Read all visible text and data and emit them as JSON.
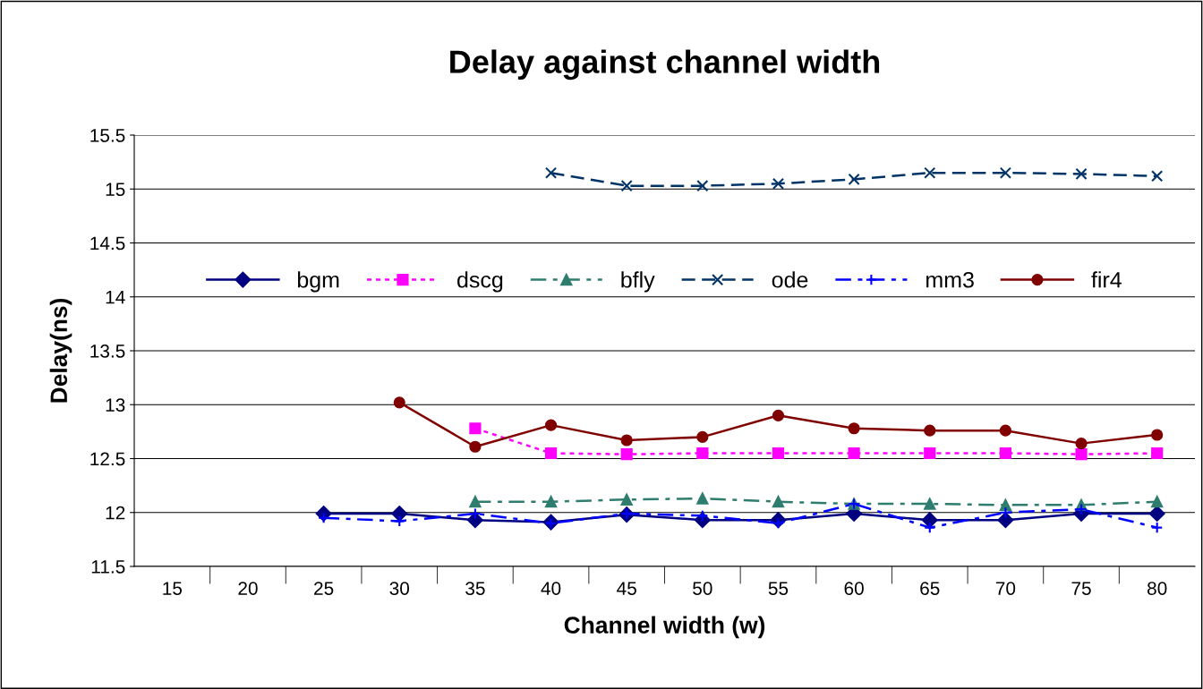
{
  "chart_data": {
    "type": "line",
    "title": "Delay against channel width",
    "xlabel": "Channel width (w)",
    "ylabel": "Delay(ns)",
    "categories": [
      "15",
      "20",
      "25",
      "30",
      "35",
      "40",
      "45",
      "50",
      "55",
      "60",
      "65",
      "70",
      "75",
      "80"
    ],
    "ylim": [
      11.5,
      15.5
    ],
    "yticks": [
      11.5,
      12,
      12.5,
      13,
      13.5,
      14,
      14.5,
      15,
      15.5
    ],
    "grid": "y",
    "legend": "center",
    "series": [
      {
        "name": "bgm",
        "color": "#000080",
        "marker": "diamond",
        "line_style": "solid",
        "values": [
          null,
          null,
          11.99,
          11.99,
          11.93,
          11.91,
          11.98,
          11.93,
          11.93,
          11.99,
          11.93,
          11.93,
          11.99,
          11.99
        ]
      },
      {
        "name": "dscg",
        "color": "#ff00ff",
        "marker": "square",
        "line_style": "dotted",
        "values": [
          null,
          null,
          null,
          null,
          12.78,
          12.55,
          12.54,
          12.55,
          12.55,
          12.55,
          12.55,
          12.55,
          12.54,
          12.55
        ]
      },
      {
        "name": "bfly",
        "color": "#2e7d6e",
        "marker": "triangle",
        "line_style": "dashdot",
        "values": [
          null,
          null,
          null,
          null,
          12.1,
          12.1,
          12.12,
          12.13,
          12.1,
          12.08,
          12.08,
          12.07,
          12.07,
          12.1
        ]
      },
      {
        "name": "ode",
        "color": "#003366",
        "marker": "cross",
        "line_style": "dashed",
        "values": [
          null,
          null,
          null,
          null,
          null,
          15.15,
          15.03,
          15.03,
          15.05,
          15.09,
          15.15,
          15.15,
          15.14,
          15.12
        ]
      },
      {
        "name": "mm3",
        "color": "#0000ff",
        "marker": "plus",
        "line_style": "dashdot",
        "values": [
          null,
          null,
          11.95,
          11.92,
          11.99,
          11.9,
          11.99,
          11.97,
          11.9,
          12.08,
          11.86,
          12.0,
          12.03,
          11.86
        ]
      },
      {
        "name": "fir4",
        "color": "#800000",
        "marker": "circle",
        "line_style": "solid",
        "values": [
          null,
          null,
          null,
          13.02,
          12.61,
          12.81,
          12.67,
          12.7,
          12.9,
          12.78,
          12.76,
          12.76,
          12.64,
          12.72
        ]
      }
    ]
  }
}
